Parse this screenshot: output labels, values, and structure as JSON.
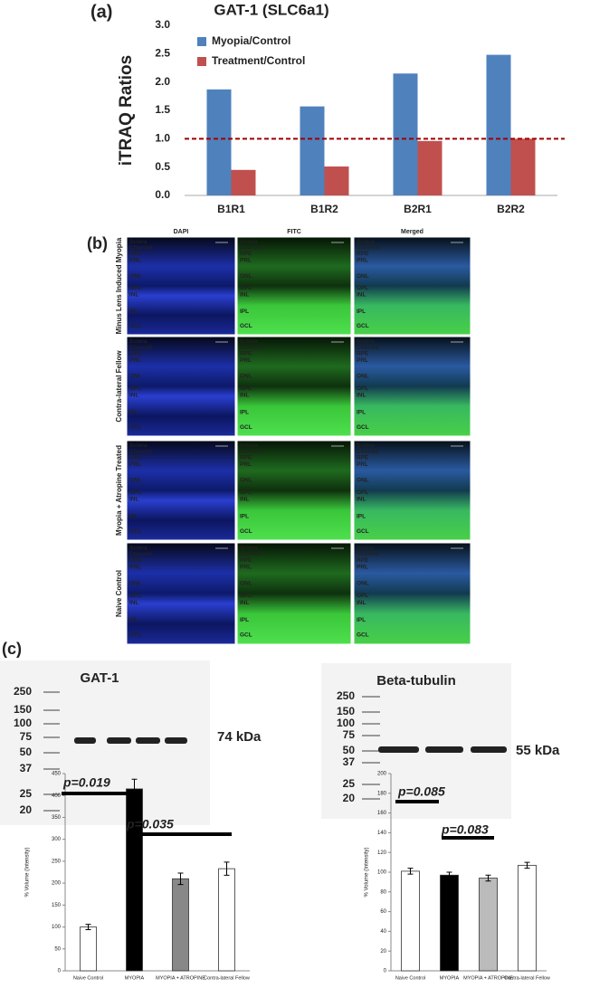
{
  "panel_labels": [
    "(a)",
    "(b)",
    "(c)"
  ],
  "chart_data": [
    {
      "type": "bar",
      "title": "GAT-1 (SLC6a1)",
      "y_label": "iTRAQ Ratios",
      "categories": [
        "B1R1",
        "B1R2",
        "B2R1",
        "B2R2"
      ],
      "series": [
        {
          "name": "Myopia/Control",
          "color": "#4f81bd",
          "values": [
            1.87,
            1.57,
            2.15,
            2.48
          ]
        },
        {
          "name": "Treatment/Control",
          "color": "#c0504d",
          "values": [
            0.45,
            0.51,
            0.96,
            1.0
          ]
        }
      ],
      "ylim": [
        0,
        3
      ],
      "yticks": [
        {
          "value": 0,
          "label": "0.0"
        },
        {
          "value": 0.5,
          "label": "0.5"
        },
        {
          "value": 1,
          "label": "1.0"
        },
        {
          "value": 1.5,
          "label": "1.5"
        },
        {
          "value": 2,
          "label": "2.0"
        },
        {
          "value": 2.5,
          "label": "2.5"
        },
        {
          "value": 3,
          "label": "3.0"
        }
      ],
      "reference_line": 1.0,
      "reference_color": "#a00000",
      "legend": "upper-left"
    },
    {
      "type": "bar",
      "y_label": "% Volume (Intensity)",
      "categories": [
        "Naive Control",
        "MYOPIA",
        "MYOPIA + ATROPINE",
        "Contra-lateral Fellow"
      ],
      "values": [
        100,
        415,
        210,
        233
      ],
      "errors": [
        6,
        22,
        13,
        15
      ],
      "colors": [
        "#ffffff",
        "#000000",
        "#888888",
        "#ffffff"
      ],
      "ylim": [
        0,
        450
      ],
      "yticks": [
        0,
        50,
        100,
        150,
        200,
        250,
        300,
        350,
        400,
        450
      ],
      "annotations": [
        "p=0.019",
        "p=0.035"
      ]
    },
    {
      "type": "bar",
      "y_label": "% Volume (Intensity)",
      "categories": [
        "Naive Control",
        "MYOPIA",
        "MYOPIA + ATROPINE",
        "Contra-lateral Fellow"
      ],
      "values": [
        101,
        97,
        94,
        107
      ],
      "errors": [
        3,
        3,
        3,
        3
      ],
      "colors": [
        "#ffffff",
        "#000000",
        "#bbbbbb",
        "#ffffff"
      ],
      "ylim": [
        0,
        200
      ],
      "yticks": [
        0,
        20,
        40,
        60,
        80,
        100,
        120,
        140,
        160,
        180,
        200
      ],
      "annotations": [
        "p=0.085",
        "p=0.083"
      ]
    }
  ],
  "micrographs": {
    "columns": [
      "DAPI",
      "FITC",
      "Merged"
    ],
    "rows": [
      "Minus Lens Induced Myopia",
      "Contra-lateral Fellow",
      "Myopia + Atropine Treated",
      "Naive Control"
    ],
    "layers": [
      "Sclera",
      "Choroid",
      "RPE",
      "PRL",
      "ONL",
      "OPL",
      "INL",
      "IPL",
      "GCL"
    ]
  },
  "blots": [
    {
      "title": "GAT-1",
      "ladder": [
        "250",
        "150",
        "100",
        "75",
        "50",
        "37",
        "25",
        "20"
      ],
      "size": "74 kDa"
    },
    {
      "title": "Beta-tubulin",
      "ladder": [
        "250",
        "150",
        "100",
        "75",
        "50",
        "37",
        "25",
        "20"
      ],
      "size": "55 kDa"
    }
  ]
}
